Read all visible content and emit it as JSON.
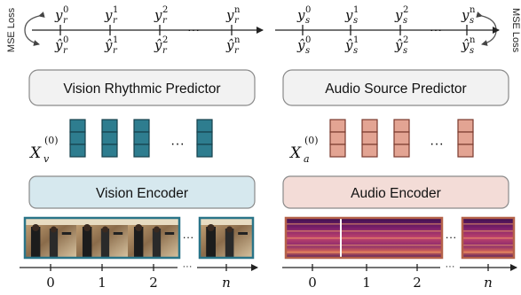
{
  "mse_loss_label": "MSE Loss",
  "vision": {
    "target_tokens": [
      {
        "base": "y",
        "sub": "r",
        "sup": "0"
      },
      {
        "base": "y",
        "sub": "r",
        "sup": "1"
      },
      {
        "base": "y",
        "sub": "r",
        "sup": "2"
      },
      {
        "base": "y",
        "sub": "r",
        "sup": "n"
      }
    ],
    "pred_tokens": [
      {
        "base": "ŷ",
        "sub": "r",
        "sup": "0"
      },
      {
        "base": "ŷ",
        "sub": "r",
        "sup": "1"
      },
      {
        "base": "ŷ",
        "sub": "r",
        "sup": "2"
      },
      {
        "base": "ŷ",
        "sub": "r",
        "sup": "n"
      }
    ],
    "ellipsis": "···",
    "predictor_label": "Vision Rhythmic Predictor",
    "feature_label": {
      "base": "X",
      "sub": "v",
      "sup": "(0)"
    },
    "encoder_label": "Vision Encoder",
    "axis_ticks": [
      "0",
      "1",
      "2",
      "n"
    ]
  },
  "audio": {
    "target_tokens": [
      {
        "base": "y",
        "sub": "s",
        "sup": "0"
      },
      {
        "base": "y",
        "sub": "s",
        "sup": "1"
      },
      {
        "base": "y",
        "sub": "s",
        "sup": "2"
      },
      {
        "base": "y",
        "sub": "s",
        "sup": "n"
      }
    ],
    "pred_tokens": [
      {
        "base": "ŷ",
        "sub": "s",
        "sup": "0"
      },
      {
        "base": "ŷ",
        "sub": "s",
        "sup": "1"
      },
      {
        "base": "ŷ",
        "sub": "s",
        "sup": "2"
      },
      {
        "base": "ŷ",
        "sub": "s",
        "sup": "n"
      }
    ],
    "ellipsis": "···",
    "predictor_label": "Audio Source Predictor",
    "feature_label": {
      "base": "X",
      "sub": "a",
      "sup": "(0)"
    },
    "encoder_label": "Audio Encoder",
    "axis_ticks": [
      "0",
      "1",
      "2",
      "n"
    ]
  },
  "colors": {
    "vision_block": "#2e7d8f",
    "vision_encoder_fill": "#d6e8ee",
    "vision_frame_border": "#2a7488",
    "audio_block": "#e3a493",
    "audio_block_border": "#7a3a2e",
    "audio_encoder_fill": "#f3dcd7",
    "audio_frame_border": "#b5624a",
    "predictor_fill": "#f2f2f2"
  }
}
